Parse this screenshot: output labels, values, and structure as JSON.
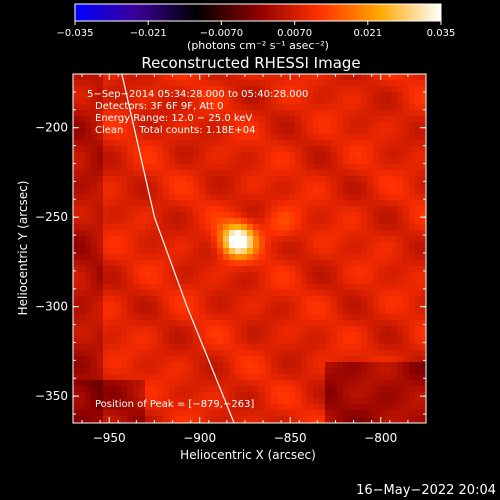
{
  "chart_data": {
    "type": "heatmap",
    "title": "Reconstructed RHESSI Image",
    "xlabel": "Heliocentric X (arcsec)",
    "ylabel": "Heliocentric Y (arcsec)",
    "xlim": [
      -970,
      -775
    ],
    "ylim": [
      -365,
      -170
    ],
    "x_ticks": [
      -950,
      -900,
      -850,
      -800
    ],
    "x_tick_labels": [
      "−950",
      "−900",
      "−850",
      "−800"
    ],
    "y_ticks": [
      -200,
      -250,
      -300,
      -350
    ],
    "y_tick_labels": [
      "−200",
      "−250",
      "−300",
      "−350"
    ],
    "colorbar": {
      "range": [
        -0.035,
        0.035
      ],
      "ticks": [
        -0.035,
        -0.021,
        -0.007,
        0.007,
        0.021,
        0.035
      ],
      "tick_labels": [
        "−0.035",
        "−0.021",
        "−0.0070",
        "0.0070",
        "0.021",
        "0.035"
      ],
      "label": "(photons cm⁻² s⁻¹ asec⁻²)",
      "colors": [
        "#0000ff",
        "#3a0098",
        "#000000",
        "#8c0000",
        "#ff3000",
        "#ffa800",
        "#ffffff"
      ]
    },
    "info": {
      "line1": "5−Sep−2014 05:34:28.000 to 05:40:28.000",
      "line2": "Detectors: 3F 6F 9F, Att 0",
      "line3": "Energy Range: 12.0 − 25.0 keV",
      "line4": "Clean     Total counts: 1.18E+04"
    },
    "peak": {
      "label": "Position of Peak = [−879,−263]",
      "x": -879,
      "y": -263,
      "value": 0.035
    },
    "secondary_source": {
      "x": -855,
      "y": -255,
      "value": 0.009
    },
    "limb": {
      "points": [
        [
          -943,
          -170
        ],
        [
          -925,
          -250
        ],
        [
          -907,
          -300
        ],
        [
          -881,
          -365
        ]
      ]
    }
  },
  "footer": {
    "timestamp": "16−May−2022 20:04"
  }
}
